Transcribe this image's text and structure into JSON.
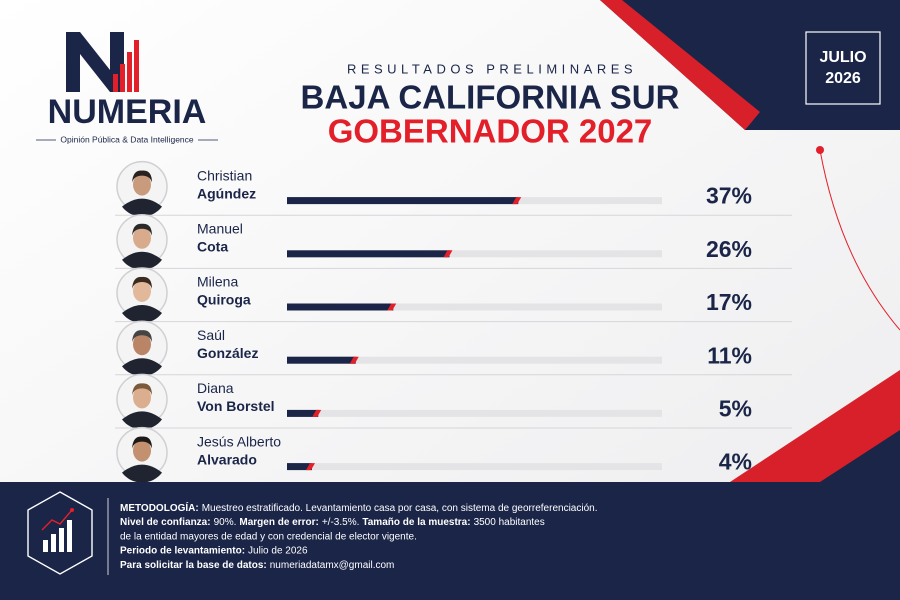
{
  "logo": {
    "name": "NUMERIA",
    "tagline": "Opinión Pública & Data Intelligence"
  },
  "date": {
    "month": "JULIO",
    "year": "2026"
  },
  "chart_data": {
    "type": "bar",
    "orientation": "horizontal",
    "subtitle": "RESULTADOS PRELIMINARES",
    "title": "BAJA CALIFORNIA SUR",
    "title2": "GOBERNADOR 2027",
    "categories": [
      [
        "Christian",
        "Agúndez"
      ],
      [
        "Manuel",
        "Cota"
      ],
      [
        "Milena",
        "Quiroga"
      ],
      [
        "Saúl",
        "González"
      ],
      [
        "Diana",
        "Von Borstel"
      ],
      [
        "Jesús Alberto",
        "Alvarado"
      ]
    ],
    "values": [
      37,
      26,
      17,
      11,
      5,
      4
    ],
    "value_labels": [
      "37%",
      "26%",
      "17%",
      "11%",
      "5%",
      "4%"
    ],
    "color": "#1a2548",
    "accent": "#e3202a",
    "track": "#e4e4e6",
    "xlim": [
      0,
      60
    ]
  },
  "footer": {
    "lines": [
      [
        {
          "bold": "METODOLOGÍA:"
        },
        {
          "text": "Muestreo estratificado. Levantamiento casa por casa, con sistema de georreferenciación."
        }
      ],
      [
        {
          "bold": "Nivel de confianza:"
        },
        {
          "text": "90%."
        },
        {
          "bold": "Margen de error:"
        },
        {
          "text": "+/-3.5%."
        },
        {
          "bold": "Tamaño de la muestra:"
        },
        {
          "text": "3500 habitantes"
        }
      ],
      [
        {
          "text": "de la entidad mayores de edad y con credencial de elector vigente."
        }
      ],
      [
        {
          "bold": "Periodo de levantamiento:"
        },
        {
          "text": "Julio de 2026"
        }
      ],
      [
        {
          "bold": "Para solicitar la base de datos:"
        },
        {
          "text": "numeriadatamx@gmail.com"
        }
      ]
    ]
  }
}
